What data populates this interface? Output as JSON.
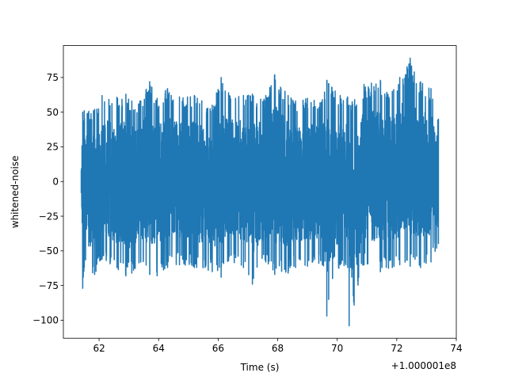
{
  "chart_data": {
    "type": "line",
    "title": "",
    "xlabel": "Time (s)",
    "ylabel": "whitened-noise",
    "x_offset_label": "+1.000001e8",
    "xlim": [
      60.8,
      74.0
    ],
    "ylim": [
      -113.0,
      98.0
    ],
    "xticks": [
      62,
      64,
      66,
      68,
      70,
      72,
      74
    ],
    "xtick_labels": [
      "62",
      "64",
      "66",
      "68",
      "70",
      "72",
      "74"
    ],
    "yticks": [
      75,
      50,
      25,
      0,
      -25,
      -50,
      -75,
      -100
    ],
    "ytick_labels": [
      "75",
      "50",
      "25",
      "0",
      "−25",
      "−50",
      "−75",
      "−100"
    ],
    "grid": false,
    "legend": "none",
    "series": [
      {
        "color": "#1f77b4",
        "x_start": 61.4,
        "x_end": 73.4,
        "envelope": {
          "x": [
            61.4,
            61.45,
            61.5,
            61.85,
            62.1,
            62.9,
            63.1,
            63.4,
            63.7,
            63.95,
            64.3,
            64.7,
            65.2,
            65.8,
            66.1,
            66.35,
            66.85,
            67.15,
            67.6,
            67.9,
            68.35,
            68.6,
            69.0,
            69.5,
            69.65,
            70.1,
            70.35,
            70.4,
            70.9,
            71.45,
            71.85,
            72.1,
            72.45,
            72.8,
            73.15,
            73.4
          ],
          "upper": [
            8,
            50,
            51,
            52,
            62,
            63,
            58,
            58,
            72,
            60,
            67,
            61,
            62,
            55,
            75,
            64,
            62,
            63,
            62,
            77,
            62,
            58,
            60,
            59,
            73,
            62,
            61,
            55,
            70,
            73,
            65,
            75,
            89,
            72,
            67,
            45
          ],
          "lower": [
            -8,
            -77,
            -62,
            -67,
            -56,
            -68,
            -66,
            -58,
            -67,
            -68,
            -62,
            -60,
            -62,
            -65,
            -69,
            -57,
            -62,
            -74,
            -58,
            -67,
            -66,
            -62,
            -61,
            -60,
            -97,
            -60,
            -62,
            -104,
            -60,
            -65,
            -62,
            -60,
            -61,
            -62,
            -58,
            -45
          ]
        }
      }
    ]
  }
}
